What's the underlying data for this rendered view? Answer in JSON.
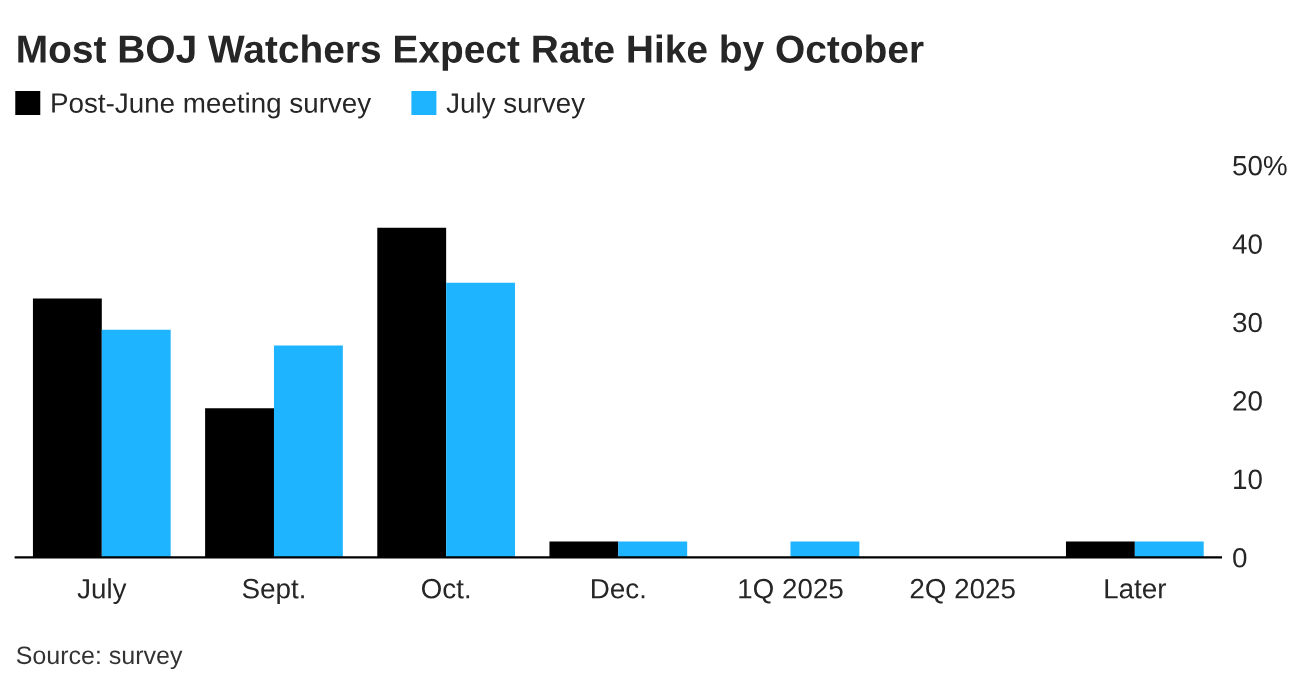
{
  "chart_data": {
    "type": "bar",
    "title": "Most BOJ Watchers Expect Rate Hike by October",
    "categories": [
      "July",
      "Sept.",
      "Oct.",
      "Dec.",
      "1Q 2025",
      "2Q 2025",
      "Later"
    ],
    "series": [
      {
        "name": "Post-June meeting survey",
        "color": "#000000",
        "values": [
          33,
          19,
          42,
          2,
          0,
          0,
          2
        ]
      },
      {
        "name": "July survey",
        "color": "#1eb4ff",
        "values": [
          29,
          27,
          35,
          2,
          2,
          0,
          2
        ]
      }
    ],
    "ylim": [
      0,
      50
    ],
    "yticks": [
      0,
      10,
      20,
      30,
      40,
      {
        "value": 50,
        "label": "50%"
      }
    ],
    "legend": "top left",
    "grid": false,
    "annotations": [
      "Source: survey"
    ]
  }
}
